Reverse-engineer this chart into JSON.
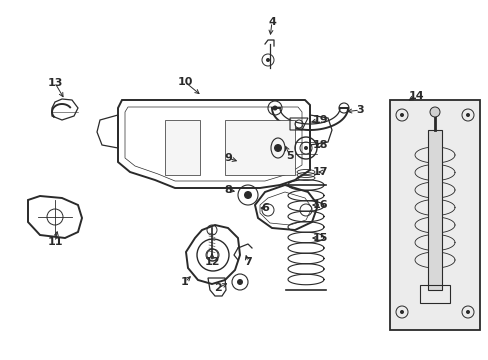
{
  "bg_color": "#ffffff",
  "lc": "#2a2a2a",
  "fig_width": 4.89,
  "fig_height": 3.6,
  "dpi": 100,
  "labels": {
    "1": [
      187,
      282,
      197,
      268
    ],
    "2": [
      216,
      284,
      210,
      276
    ],
    "3": [
      358,
      118,
      342,
      118
    ],
    "4": [
      270,
      28,
      270,
      42
    ],
    "5": [
      288,
      163,
      288,
      148
    ],
    "6": [
      262,
      215,
      262,
      200
    ],
    "7": [
      247,
      257,
      247,
      243
    ],
    "8": [
      230,
      195,
      244,
      195
    ],
    "9": [
      228,
      168,
      242,
      168
    ],
    "10": [
      183,
      88,
      193,
      100
    ],
    "11": [
      55,
      228,
      55,
      214
    ],
    "12": [
      212,
      248,
      212,
      234
    ],
    "13": [
      55,
      88,
      65,
      100
    ],
    "14": [
      416,
      102,
      406,
      114
    ],
    "15": [
      318,
      240,
      306,
      240
    ],
    "16": [
      318,
      210,
      306,
      210
    ],
    "17": [
      318,
      178,
      306,
      178
    ],
    "18": [
      318,
      148,
      306,
      148
    ],
    "19": [
      318,
      128,
      302,
      128
    ]
  }
}
